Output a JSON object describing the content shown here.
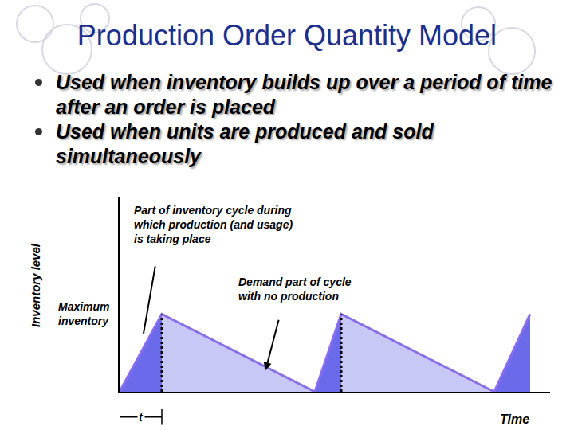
{
  "slide": {
    "title": "Production Order Quantity Model",
    "bullets": [
      "Used when inventory builds up over a period of time after an order is placed",
      "Used when units are produced and sold simultaneously"
    ]
  },
  "chart_data": {
    "type": "line",
    "x_label": "Time",
    "y_label": "Inventory level",
    "x": [
      0,
      53,
      245,
      278,
      470,
      515
    ],
    "values": [
      0,
      40,
      0,
      40,
      0,
      40
    ],
    "xlim": [
      0,
      540
    ],
    "ylim": [
      0,
      100
    ],
    "tick_labels": false,
    "grid": false,
    "color": "#8a6de9",
    "annotations": {
      "production": "Part of inventory cycle during\nwhich production (and usage)\nis taking place",
      "demand": "Demand part of cycle\nwith no production",
      "maximum": "Maximum\ninventory",
      "t": "t"
    }
  }
}
